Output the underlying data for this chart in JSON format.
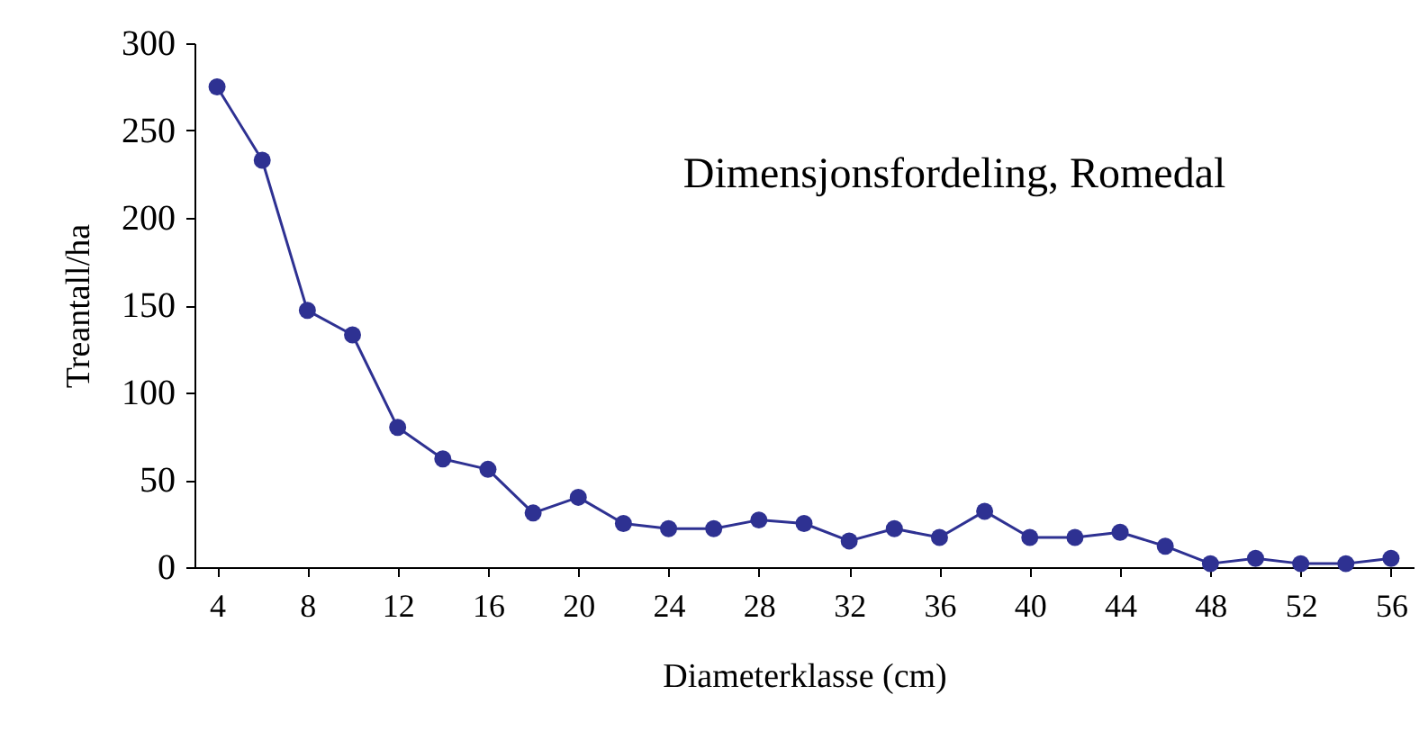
{
  "chart_data": {
    "type": "line",
    "xlabel": "Diameterklasse (cm)",
    "ylabel": "Treantall/ha",
    "annotations": [
      "Dimensjonsfordeling, Romedal"
    ],
    "x": [
      4,
      6,
      8,
      10,
      12,
      14,
      16,
      18,
      20,
      22,
      24,
      26,
      28,
      30,
      32,
      34,
      36,
      38,
      40,
      42,
      44,
      46,
      48,
      50,
      52,
      54,
      56
    ],
    "series": [
      {
        "color": "#2e3192",
        "values": [
          275,
          233,
          147,
          133,
          80,
          62,
          56,
          31,
          40,
          25,
          22,
          22,
          27,
          25,
          15,
          22,
          17,
          32,
          17,
          17,
          20,
          12,
          2,
          5,
          2,
          2,
          5
        ]
      }
    ],
    "xlim": [
      3,
      57
    ],
    "xticks": [
      4,
      8,
      12,
      16,
      20,
      24,
      28,
      32,
      36,
      40,
      44,
      48,
      52,
      56
    ],
    "ylim": [
      0,
      300
    ],
    "yticks": [
      0,
      50,
      100,
      150,
      200,
      250,
      300
    ],
    "grid": false,
    "marker": "circle",
    "line_style": "solid"
  }
}
